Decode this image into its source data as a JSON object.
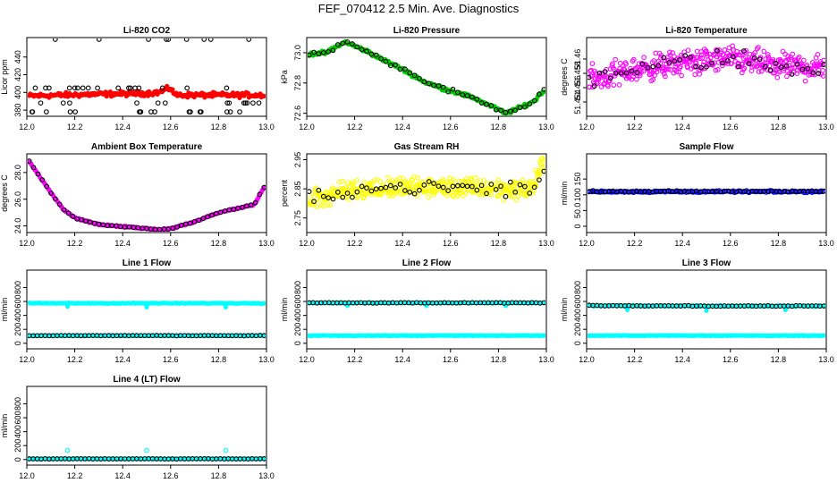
{
  "figure_title": "FEF_070412  2.5 Min. Ave. Diagnostics",
  "chart_data": [
    {
      "id": "p0",
      "type": "scatter",
      "title": "Li-820 CO2",
      "ylabel": "Licor ppm",
      "ylim": [
        373,
        462
      ],
      "yticks": [
        380,
        400,
        420,
        440
      ],
      "xlim": [
        12.0,
        13.0
      ],
      "xticks": [
        12.0,
        12.2,
        12.4,
        12.6,
        12.8,
        13.0
      ],
      "series": [
        {
          "color": "#ff0000",
          "fill": true,
          "gen": {
            "kind": "dense",
            "n": 250,
            "base": [
              [
                12.0,
                396
              ],
              [
                12.3,
                398
              ],
              [
                12.5,
                399
              ],
              [
                12.55,
                400
              ],
              [
                12.6,
                405
              ],
              [
                12.62,
                397
              ],
              [
                12.8,
                397
              ],
              [
                13.0,
                397
              ]
            ],
            "noise": 2
          }
        },
        {
          "color": "#000000",
          "fill": false,
          "gen": {
            "kind": "levels",
            "levels": [
              378,
              388,
              405,
              460
            ],
            "n": 56
          }
        }
      ]
    },
    {
      "id": "p1",
      "type": "scatter",
      "title": "Li-820 Pressure",
      "ylabel": "kPa",
      "ylim": [
        72.58,
        73.1
      ],
      "yticks": [
        72.6,
        72.8,
        73.0
      ],
      "xlim": [
        12.0,
        13.0
      ],
      "xticks": [
        12.0,
        12.2,
        12.4,
        12.6,
        12.8,
        13.0
      ],
      "series": [
        {
          "color": "#00cc00",
          "fill": true,
          "gen": {
            "kind": "dense",
            "n": 220,
            "base": [
              [
                12.0,
                72.99
              ],
              [
                12.08,
                73.0
              ],
              [
                12.16,
                73.07
              ],
              [
                12.25,
                73.01
              ],
              [
                12.4,
                72.89
              ],
              [
                12.5,
                72.8
              ],
              [
                12.6,
                72.75
              ],
              [
                12.7,
                72.7
              ],
              [
                12.78,
                72.64
              ],
              [
                12.83,
                72.6
              ],
              [
                12.88,
                72.63
              ],
              [
                12.95,
                72.68
              ],
              [
                12.98,
                72.74
              ]
            ],
            "noise": 0.008
          }
        },
        {
          "color": "#000000",
          "fill": false,
          "gen": {
            "kind": "sparse",
            "n": 50,
            "base": [
              [
                12.0,
                72.99
              ],
              [
                12.08,
                73.0
              ],
              [
                12.16,
                73.08
              ],
              [
                12.25,
                73.01
              ],
              [
                12.4,
                72.89
              ],
              [
                12.5,
                72.8
              ],
              [
                12.6,
                72.75
              ],
              [
                12.7,
                72.7
              ],
              [
                12.78,
                72.64
              ],
              [
                12.83,
                72.6
              ],
              [
                12.88,
                72.63
              ],
              [
                12.95,
                72.68
              ],
              [
                12.98,
                72.76
              ]
            ],
            "noise": 0.01
          }
        }
      ]
    },
    {
      "id": "p2",
      "type": "scatter",
      "title": "Li-820 Temperature",
      "ylabel": "degrees C",
      "ylim": [
        51.452,
        51.463
      ],
      "yticks": [
        51.454,
        51.456,
        51.458,
        51.46
      ],
      "xlim": [
        12.0,
        13.0
      ],
      "xticks": [
        12.0,
        12.2,
        12.4,
        12.6,
        12.8,
        13.0
      ],
      "series": [
        {
          "color": "#ff00ff",
          "fill": false,
          "gen": {
            "kind": "dense",
            "n": 420,
            "base": [
              [
                12.0,
                51.457
              ],
              [
                12.2,
                51.4585
              ],
              [
                12.4,
                51.4595
              ],
              [
                12.6,
                51.46
              ],
              [
                12.8,
                51.459
              ],
              [
                13.0,
                51.4588
              ]
            ],
            "noise": 0.0013
          }
        },
        {
          "color": "#000000",
          "fill": false,
          "gen": {
            "kind": "sparse",
            "n": 45,
            "base": [
              [
                12.0,
                51.4575
              ],
              [
                12.2,
                51.4585
              ],
              [
                12.4,
                51.4595
              ],
              [
                12.6,
                51.46
              ],
              [
                12.8,
                51.459
              ],
              [
                13.0,
                51.4588
              ]
            ],
            "noise": 0.001
          }
        }
      ]
    },
    {
      "id": "p3",
      "type": "scatter",
      "title": "Ambient Box Temperature",
      "ylabel": "degrees C",
      "ylim": [
        23.5,
        29.4
      ],
      "yticks": [
        24,
        26,
        28
      ],
      "xlim": [
        12.0,
        13.0
      ],
      "xticks": [
        12.0,
        12.2,
        12.4,
        12.6,
        12.8,
        13.0
      ],
      "series": [
        {
          "color": "#ff00ff",
          "fill": true,
          "gen": {
            "kind": "dense",
            "n": 260,
            "base": [
              [
                12.0,
                29.1
              ],
              [
                12.05,
                27.8
              ],
              [
                12.1,
                26.5
              ],
              [
                12.15,
                25.3
              ],
              [
                12.2,
                24.6
              ],
              [
                12.3,
                24.1
              ],
              [
                12.4,
                23.95
              ],
              [
                12.5,
                23.8
              ],
              [
                12.55,
                23.7
              ],
              [
                12.6,
                23.8
              ],
              [
                12.7,
                24.3
              ],
              [
                12.8,
                25.0
              ],
              [
                12.9,
                25.4
              ],
              [
                12.95,
                25.6
              ],
              [
                12.97,
                26.3
              ],
              [
                13.0,
                27.2
              ]
            ],
            "noise": 0.04
          }
        },
        {
          "color": "#000000",
          "fill": false,
          "gen": {
            "kind": "sparse",
            "n": 55,
            "base": [
              [
                12.0,
                29.1
              ],
              [
                12.05,
                27.8
              ],
              [
                12.1,
                26.5
              ],
              [
                12.15,
                25.3
              ],
              [
                12.2,
                24.6
              ],
              [
                12.3,
                24.1
              ],
              [
                12.4,
                23.95
              ],
              [
                12.5,
                23.8
              ],
              [
                12.55,
                23.7
              ],
              [
                12.6,
                23.8
              ],
              [
                12.7,
                24.3
              ],
              [
                12.8,
                25.0
              ],
              [
                12.9,
                25.4
              ],
              [
                12.95,
                25.6
              ],
              [
                12.97,
                26.3
              ],
              [
                13.0,
                27.2
              ]
            ],
            "noise": 0.02
          }
        }
      ]
    },
    {
      "id": "p4",
      "type": "scatter",
      "title": "Gas Stream RH",
      "ylabel": "percent",
      "ylim": [
        2.7,
        2.97
      ],
      "yticks": [
        2.75,
        2.85,
        2.95
      ],
      "xlim": [
        12.0,
        13.0
      ],
      "xticks": [
        12.0,
        12.2,
        12.4,
        12.6,
        12.8,
        13.0
      ],
      "series": [
        {
          "color": "#ffff00",
          "fill": false,
          "gen": {
            "kind": "dense",
            "n": 420,
            "base": [
              [
                12.0,
                2.81
              ],
              [
                12.2,
                2.85
              ],
              [
                12.4,
                2.855
              ],
              [
                12.6,
                2.855
              ],
              [
                12.8,
                2.85
              ],
              [
                12.94,
                2.85
              ],
              [
                12.98,
                2.93
              ]
            ],
            "noise": 0.025
          }
        },
        {
          "color": "#000000",
          "fill": false,
          "gen": {
            "kind": "sparse",
            "n": 50,
            "base": [
              [
                12.0,
                2.81
              ],
              [
                12.2,
                2.85
              ],
              [
                12.4,
                2.855
              ],
              [
                12.6,
                2.855
              ],
              [
                12.8,
                2.85
              ],
              [
                12.94,
                2.85
              ],
              [
                12.98,
                2.9
              ]
            ],
            "noise": 0.018
          }
        }
      ]
    },
    {
      "id": "p5",
      "type": "scatter",
      "title": "Sample Flow",
      "ylabel": "ml/min",
      "ylim": [
        -20,
        230
      ],
      "yticks": [
        0,
        50,
        100,
        150
      ],
      "xlim": [
        12.0,
        13.0
      ],
      "xticks": [
        12.0,
        12.2,
        12.4,
        12.6,
        12.8,
        13.0
      ],
      "series": [
        {
          "color": "#0000ff",
          "fill": false,
          "gen": {
            "kind": "dense",
            "n": 180,
            "base": [
              [
                12.0,
                110
              ],
              [
                13.0,
                110
              ]
            ],
            "noise": 2
          }
        },
        {
          "color": "#000000",
          "fill": false,
          "gen": {
            "kind": "sparse",
            "n": 60,
            "base": [
              [
                12.0,
                111
              ],
              [
                13.0,
                111
              ]
            ],
            "noise": 1.5
          }
        }
      ]
    },
    {
      "id": "p6",
      "type": "scatter",
      "title": "Line 1 Flow",
      "ylabel": "ml/min",
      "ylim": [
        -80,
        1050
      ],
      "yticks": [
        0,
        200,
        400,
        600,
        800
      ],
      "xlim": [
        12.0,
        13.0
      ],
      "xticks": [
        12.0,
        12.2,
        12.4,
        12.6,
        12.8,
        13.0
      ],
      "series": [
        {
          "color": "#00ffff",
          "fill": true,
          "gen": {
            "kind": "dense",
            "n": 140,
            "base": [
              [
                12.0,
                575
              ],
              [
                13.0,
                575
              ]
            ],
            "noise": 4,
            "outliers": [
              [
                12.17,
                530
              ],
              [
                12.5,
                520
              ],
              [
                12.83,
                520
              ]
            ]
          }
        },
        {
          "color": "#00ffff",
          "fill": true,
          "gen": {
            "kind": "dense",
            "n": 140,
            "base": [
              [
                12.0,
                110
              ],
              [
                13.0,
                110
              ]
            ],
            "noise": 3
          }
        },
        {
          "color": "#000000",
          "fill": false,
          "gen": {
            "kind": "sparse",
            "n": 60,
            "base": [
              [
                12.0,
                110
              ],
              [
                13.0,
                110
              ]
            ],
            "noise": 2
          }
        }
      ]
    },
    {
      "id": "p7",
      "type": "scatter",
      "title": "Line 2 Flow",
      "ylabel": "ml/min",
      "ylim": [
        -80,
        1050
      ],
      "yticks": [
        0,
        200,
        400,
        600,
        800
      ],
      "xlim": [
        12.0,
        13.0
      ],
      "xticks": [
        12.0,
        12.2,
        12.4,
        12.6,
        12.8,
        13.0
      ],
      "series": [
        {
          "color": "#00ffff",
          "fill": true,
          "gen": {
            "kind": "dense",
            "n": 140,
            "base": [
              [
                12.0,
                580
              ],
              [
                13.0,
                580
              ]
            ],
            "noise": 4,
            "outliers": [
              [
                12.17,
                540
              ],
              [
                12.5,
                540
              ],
              [
                12.83,
                540
              ]
            ]
          }
        },
        {
          "color": "#000000",
          "fill": false,
          "gen": {
            "kind": "sparse",
            "n": 60,
            "base": [
              [
                12.0,
                580
              ],
              [
                13.0,
                580
              ]
            ],
            "noise": 3
          }
        },
        {
          "color": "#00ffff",
          "fill": true,
          "gen": {
            "kind": "dense",
            "n": 140,
            "base": [
              [
                12.0,
                110
              ],
              [
                13.0,
                110
              ]
            ],
            "noise": 3
          }
        }
      ]
    },
    {
      "id": "p8",
      "type": "scatter",
      "title": "Line 3 Flow",
      "ylabel": "ml/min",
      "ylim": [
        -80,
        1050
      ],
      "yticks": [
        0,
        200,
        400,
        600,
        800
      ],
      "xlim": [
        12.0,
        13.0
      ],
      "xticks": [
        12.0,
        12.2,
        12.4,
        12.6,
        12.8,
        13.0
      ],
      "series": [
        {
          "color": "#00ffff",
          "fill": true,
          "gen": {
            "kind": "dense",
            "n": 140,
            "base": [
              [
                12.0,
                540
              ],
              [
                12.5,
                535
              ],
              [
                13.0,
                535
              ]
            ],
            "noise": 5,
            "outliers": [
              [
                12.17,
                480
              ],
              [
                12.5,
                470
              ],
              [
                12.83,
                480
              ]
            ]
          }
        },
        {
          "color": "#000000",
          "fill": false,
          "gen": {
            "kind": "sparse",
            "n": 60,
            "base": [
              [
                12.0,
                540
              ],
              [
                12.5,
                535
              ],
              [
                13.0,
                535
              ]
            ],
            "noise": 4
          }
        },
        {
          "color": "#00ffff",
          "fill": true,
          "gen": {
            "kind": "dense",
            "n": 140,
            "base": [
              [
                12.0,
                110
              ],
              [
                13.0,
                110
              ]
            ],
            "noise": 3
          }
        }
      ]
    },
    {
      "id": "p9",
      "type": "scatter",
      "title": "Line 4 (LT) Flow",
      "ylabel": "ml/min",
      "ylim": [
        -80,
        1050
      ],
      "yticks": [
        0,
        200,
        400,
        600,
        800
      ],
      "xlim": [
        12.0,
        13.0
      ],
      "xticks": [
        12.0,
        12.2,
        12.4,
        12.6,
        12.8,
        13.0
      ],
      "series": [
        {
          "color": "#00ffff",
          "fill": true,
          "gen": {
            "kind": "dense",
            "n": 140,
            "base": [
              [
                12.0,
                10
              ],
              [
                13.0,
                10
              ]
            ],
            "noise": 2
          }
        },
        {
          "color": "#000000",
          "fill": false,
          "gen": {
            "kind": "sparse",
            "n": 60,
            "base": [
              [
                12.0,
                10
              ],
              [
                13.0,
                10
              ]
            ],
            "noise": 2
          }
        },
        {
          "color": "#00ffff",
          "fill": false,
          "gen": {
            "kind": "points",
            "pts": [
              [
                12.17,
                130
              ],
              [
                12.5,
                130
              ],
              [
                12.83,
                130
              ]
            ]
          }
        }
      ]
    }
  ]
}
